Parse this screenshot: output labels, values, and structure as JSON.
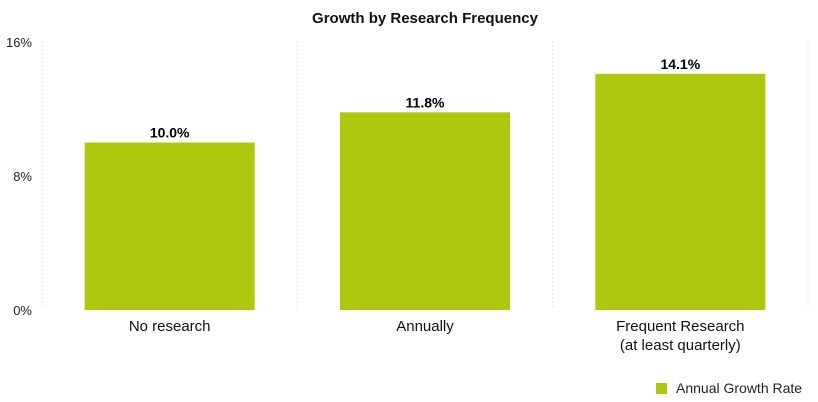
{
  "chart_data": {
    "type": "bar",
    "title": "Growth by Research Frequency",
    "categories": [
      "No research",
      "Annually",
      "Frequent Research (at least quarterly)"
    ],
    "category_lines": [
      [
        "No research"
      ],
      [
        "Annually"
      ],
      [
        "Frequent Research",
        "(at least quarterly)"
      ]
    ],
    "series": [
      {
        "name": "Annual Growth Rate",
        "values": [
          10.0,
          11.8,
          14.1
        ]
      }
    ],
    "value_labels": [
      "10.0%",
      "11.8%",
      "14.1%"
    ],
    "ylim": [
      0,
      16
    ],
    "yticks": [
      0,
      8,
      16
    ],
    "ytick_labels": [
      "0%",
      "8%",
      "16%"
    ],
    "xlabel": "",
    "ylabel": "",
    "grid": "vertical dotted",
    "legend_position": "bottom-right",
    "colors": {
      "bar": "#afc80f",
      "legend": "#afc80f",
      "grid": "#cfcfcf"
    }
  }
}
